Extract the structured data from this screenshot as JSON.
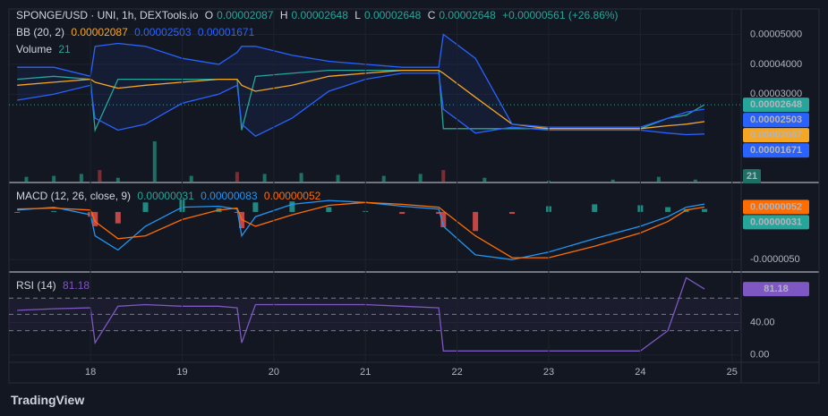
{
  "header": {
    "symbol": "SPONGE/USD · UNI, 1h, DEXTools.io",
    "ohlc": [
      {
        "key": "O",
        "value": "0.00002087"
      },
      {
        "key": "H",
        "value": "0.00002648"
      },
      {
        "key": "L",
        "value": "0.00002648"
      },
      {
        "key": "C",
        "value": "0.00002648"
      }
    ],
    "change": "+0.00000561 (+26.86%)"
  },
  "brand": "TradingView",
  "chart_data": [
    {
      "type": "line",
      "title": "BB (20, 2)",
      "x": [
        17.2,
        17.6,
        18.0,
        18.05,
        18.3,
        18.6,
        19.0,
        19.4,
        19.6,
        19.65,
        19.8,
        20.2,
        20.6,
        21.0,
        21.4,
        21.8,
        21.85,
        22.2,
        22.6,
        23.0,
        23.5,
        24.0,
        24.3,
        24.5,
        24.7
      ],
      "xlim": [
        17.11,
        25.1
      ],
      "ylim": [
        8e-07,
        5.85e-05
      ],
      "yticks": [
        {
          "value": 5e-05,
          "label": "0.00005000"
        },
        {
          "value": 4e-05,
          "label": "0.00004000"
        },
        {
          "value": 3e-05,
          "label": "0.00003000"
        }
      ],
      "series": [
        {
          "color": "#26a69a",
          "values": [
            3.5e-05,
            3.6e-05,
            3.5e-05,
            1.8e-05,
            3.5e-05,
            3.5e-05,
            3.5e-05,
            3.5e-05,
            3.5e-05,
            1.8e-05,
            3.6e-05,
            3.7e-05,
            3.8e-05,
            3.8e-05,
            3.8e-05,
            3.8e-05,
            1.85e-05,
            1.85e-05,
            1.85e-05,
            1.85e-05,
            1.85e-05,
            1.85e-05,
            2.2e-05,
            2.3e-05,
            2.648e-05
          ],
          "value_labels": [
            null,
            null,
            null,
            null,
            null,
            null,
            null,
            null,
            null,
            null,
            null,
            null,
            null,
            null,
            null,
            null,
            null,
            null,
            null,
            null,
            null,
            null,
            null,
            null,
            "0.00002648"
          ]
        },
        {
          "color": "#f5a623",
          "values": [
            3.3e-05,
            3.4e-05,
            3.5e-05,
            3.4e-05,
            3.2e-05,
            3.3e-05,
            3.4e-05,
            3.5e-05,
            3.5e-05,
            3.3e-05,
            3.1e-05,
            3.3e-05,
            3.6e-05,
            3.7e-05,
            3.8e-05,
            3.8e-05,
            3.7e-05,
            2.9e-05,
            2e-05,
            1.85e-05,
            1.85e-05,
            1.85e-05,
            1.95e-05,
            2e-05,
            2.087e-05
          ],
          "value_labels": [
            null,
            null,
            null,
            null,
            null,
            null,
            null,
            null,
            null,
            null,
            null,
            null,
            null,
            null,
            null,
            null,
            null,
            null,
            null,
            null,
            null,
            null,
            null,
            null,
            "0.00002087"
          ]
        },
        {
          "color": "#2962ff",
          "values": [
            3.9e-05,
            3.9e-05,
            3.6e-05,
            4.6e-05,
            4.7e-05,
            4.6e-05,
            4.2e-05,
            4e-05,
            4.4e-05,
            4.6e-05,
            4.6e-05,
            4.3e-05,
            4.1e-05,
            4e-05,
            3.9e-05,
            3.9e-05,
            5e-05,
            4.2e-05,
            2e-05,
            1.9e-05,
            1.9e-05,
            1.9e-05,
            2.2e-05,
            2.4e-05,
            2.503e-05
          ],
          "value_labels": [
            null,
            null,
            null,
            null,
            null,
            null,
            null,
            null,
            null,
            null,
            null,
            null,
            null,
            null,
            null,
            null,
            null,
            null,
            null,
            null,
            null,
            null,
            null,
            null,
            "0.00002503"
          ]
        },
        {
          "color": "#2962ff",
          "values": [
            2.8e-05,
            3e-05,
            3.3e-05,
            2.2e-05,
            1.8e-05,
            2e-05,
            2.7e-05,
            3e-05,
            3.3e-05,
            2e-05,
            1.6e-05,
            2.2e-05,
            3.1e-05,
            3.5e-05,
            3.7e-05,
            3.7e-05,
            2.5e-05,
            1.7e-05,
            1.9e-05,
            1.8e-05,
            1.8e-05,
            1.8e-05,
            1.7e-05,
            1.65e-05,
            1.671e-05
          ],
          "value_labels": [
            null,
            null,
            null,
            null,
            null,
            null,
            null,
            null,
            null,
            null,
            null,
            null,
            null,
            null,
            null,
            null,
            null,
            null,
            null,
            null,
            null,
            null,
            null,
            null,
            "0.00001671"
          ]
        }
      ]
    },
    {
      "type": "bar",
      "title": "Volume",
      "x": [
        17.3,
        17.6,
        17.9,
        18.1,
        18.3,
        18.7,
        19.1,
        19.6,
        19.9,
        20.3,
        20.7,
        21.2,
        21.6,
        21.85,
        22.3,
        23.0,
        23.7,
        24.2,
        24.6
      ],
      "xlim": [
        17.11,
        25.1
      ],
      "values": [
        50,
        60,
        80,
        120,
        40,
        420,
        60,
        100,
        80,
        90,
        70,
        60,
        80,
        120,
        40,
        10,
        20,
        50,
        21
      ],
      "colors": [
        "#1e6f66",
        "#1e6f66",
        "#1e6f66",
        "#7a2e34",
        "#1e6f66",
        "#1e6f66",
        "#1e6f66",
        "#7a2e34",
        "#1e6f66",
        "#1e6f66",
        "#1e6f66",
        "#1e6f66",
        "#1e6f66",
        "#7a2e34",
        "#1e6f66",
        "#1e6f66",
        "#1e6f66",
        "#1e6f66",
        "#1e6f66"
      ]
    },
    {
      "type": "macd",
      "title": "MACD (12, 26, close, 9)",
      "x": [
        17.2,
        17.6,
        18.0,
        18.05,
        18.3,
        18.6,
        19.0,
        19.4,
        19.6,
        19.65,
        19.8,
        20.2,
        20.6,
        21.0,
        21.4,
        21.8,
        21.85,
        22.2,
        22.6,
        23.0,
        23.5,
        24.0,
        24.3,
        24.5,
        24.7
      ],
      "xlim": [
        17.11,
        25.1
      ],
      "ylim": [
        -6.2e-06,
        2.9e-06
      ],
      "yticks": [
        {
          "value": -5e-06,
          "label": "-0.0000050"
        }
      ],
      "histogram": {
        "colors": [
          "#26a69a",
          "#ef5350"
        ],
        "values": [
          -1e-07,
          1e-07,
          -5e-07,
          -1.5e-06,
          -1.2e-06,
          1e-06,
          1.3e-06,
          4e-07,
          -1e-07,
          -1.7e-06,
          1e-06,
          1.1e-06,
          5e-07,
          1e-07,
          -2e-07,
          -2e-07,
          -1.6e-06,
          -2e-06,
          -2e-07,
          6e-07,
          8e-07,
          7e-07,
          5e-07,
          3e-07,
          3.1e-07
        ],
        "value_labels": [
          null,
          null,
          null,
          null,
          null,
          null,
          null,
          null,
          null,
          null,
          null,
          null,
          null,
          null,
          null,
          null,
          null,
          null,
          null,
          null,
          null,
          null,
          null,
          null,
          "0.00000031"
        ]
      },
      "series": [
        {
          "color": "#2196f3",
          "values": [
            2e-07,
            5e-07,
            -3e-07,
            -2.5e-06,
            -4e-06,
            -1.5e-06,
            5e-07,
            6e-07,
            3e-07,
            -2.5e-06,
            -5e-07,
            8e-07,
            1.2e-06,
            1e-06,
            6e-07,
            3e-07,
            -1.5e-06,
            -4.5e-06,
            -5e-06,
            -4.2e-06,
            -2.8e-06,
            -1.5e-06,
            -5e-07,
            5e-07,
            8.3e-07
          ],
          "value_labels": [
            null,
            null,
            null,
            null,
            null,
            null,
            null,
            null,
            null,
            null,
            null,
            null,
            null,
            null,
            null,
            null,
            null,
            null,
            null,
            null,
            null,
            null,
            null,
            null,
            "0.00000083"
          ]
        },
        {
          "color": "#ff6d00",
          "values": [
            3e-07,
            4e-07,
            2e-07,
            -1e-06,
            -2.8e-06,
            -2.5e-06,
            -8e-07,
            2e-07,
            4e-07,
            -8e-07,
            -1.5e-06,
            -3e-07,
            7e-07,
            1e-06,
            8e-07,
            5e-07,
            1e-07,
            -2.5e-06,
            -4.8e-06,
            -4.8e-06,
            -3.6e-06,
            -2.2e-06,
            -1e-06,
            2e-07,
            5.2e-07
          ],
          "value_labels": [
            null,
            null,
            null,
            null,
            null,
            null,
            null,
            null,
            null,
            null,
            null,
            null,
            null,
            null,
            null,
            null,
            null,
            null,
            null,
            null,
            null,
            null,
            null,
            null,
            "0.00000052"
          ]
        }
      ]
    },
    {
      "type": "line",
      "title": "RSI (14)",
      "x": [
        17.2,
        17.6,
        18.0,
        18.05,
        18.3,
        18.6,
        19.0,
        19.4,
        19.6,
        19.65,
        19.8,
        20.2,
        20.6,
        21.0,
        21.4,
        21.8,
        21.85,
        22.2,
        22.6,
        23.0,
        23.5,
        24.0,
        24.3,
        24.5,
        24.7
      ],
      "xlim": [
        17.11,
        25.1
      ],
      "ylim": [
        -9,
        100
      ],
      "xticks": [
        18,
        19,
        20,
        21,
        22,
        23,
        24,
        25
      ],
      "yticks": [
        {
          "value": 40,
          "label": "40.00"
        },
        {
          "value": 0,
          "label": "0.00"
        }
      ],
      "levels": [
        70,
        50,
        30
      ],
      "series": [
        {
          "color": "#7e57c2",
          "values": [
            55,
            57,
            58,
            15,
            60,
            62,
            60,
            60,
            58,
            15,
            62,
            62,
            62,
            62,
            60,
            58,
            5,
            5,
            5,
            5,
            5,
            5,
            30,
            95,
            81.18
          ],
          "value_labels": [
            null,
            null,
            null,
            null,
            null,
            null,
            null,
            null,
            null,
            null,
            null,
            null,
            null,
            null,
            null,
            null,
            null,
            null,
            null,
            null,
            null,
            null,
            null,
            null,
            "81.18"
          ]
        }
      ]
    }
  ]
}
